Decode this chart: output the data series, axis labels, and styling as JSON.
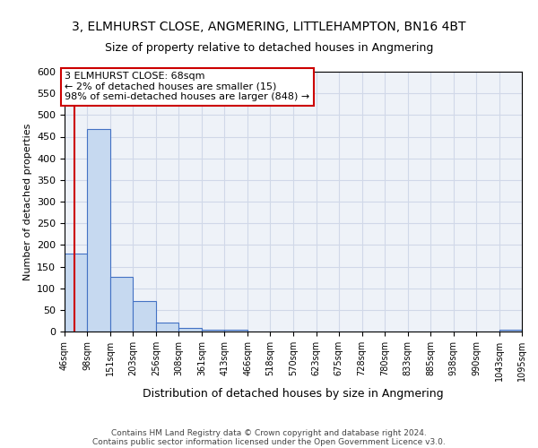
{
  "title1": "3, ELMHURST CLOSE, ANGMERING, LITTLEHAMPTON, BN16 4BT",
  "title2": "Size of property relative to detached houses in Angmering",
  "xlabel": "Distribution of detached houses by size in Angmering",
  "ylabel": "Number of detached properties",
  "footer1": "Contains HM Land Registry data © Crown copyright and database right 2024.",
  "footer2": "Contains public sector information licensed under the Open Government Licence v3.0.",
  "bin_labels": [
    "46sqm",
    "98sqm",
    "151sqm",
    "203sqm",
    "256sqm",
    "308sqm",
    "361sqm",
    "413sqm",
    "466sqm",
    "518sqm",
    "570sqm",
    "623sqm",
    "675sqm",
    "728sqm",
    "780sqm",
    "833sqm",
    "885sqm",
    "938sqm",
    "990sqm",
    "1043sqm",
    "1095sqm"
  ],
  "bar_values": [
    180,
    467,
    127,
    70,
    20,
    8,
    5,
    5,
    0,
    0,
    0,
    0,
    0,
    0,
    0,
    0,
    0,
    0,
    0,
    5
  ],
  "bar_color": "#c6d9f0",
  "bar_edge_color": "#4472c4",
  "bin_edges": [
    46,
    98,
    151,
    203,
    256,
    308,
    361,
    413,
    466,
    518,
    570,
    623,
    675,
    728,
    780,
    833,
    885,
    938,
    990,
    1043,
    1095
  ],
  "property_size": 68,
  "red_line_color": "#cc0000",
  "ylim": [
    0,
    600
  ],
  "yticks": [
    0,
    50,
    100,
    150,
    200,
    250,
    300,
    350,
    400,
    450,
    500,
    550,
    600
  ],
  "annotation_text": "3 ELMHURST CLOSE: 68sqm\n← 2% of detached houses are smaller (15)\n98% of semi-detached houses are larger (848) →",
  "annotation_box_color": "#ffffff",
  "annotation_box_edge": "#cc0000",
  "grid_color": "#d0d8e8",
  "bg_color": "#eef2f8",
  "title1_fontsize": 10,
  "title2_fontsize": 9,
  "annotation_fontsize": 8
}
